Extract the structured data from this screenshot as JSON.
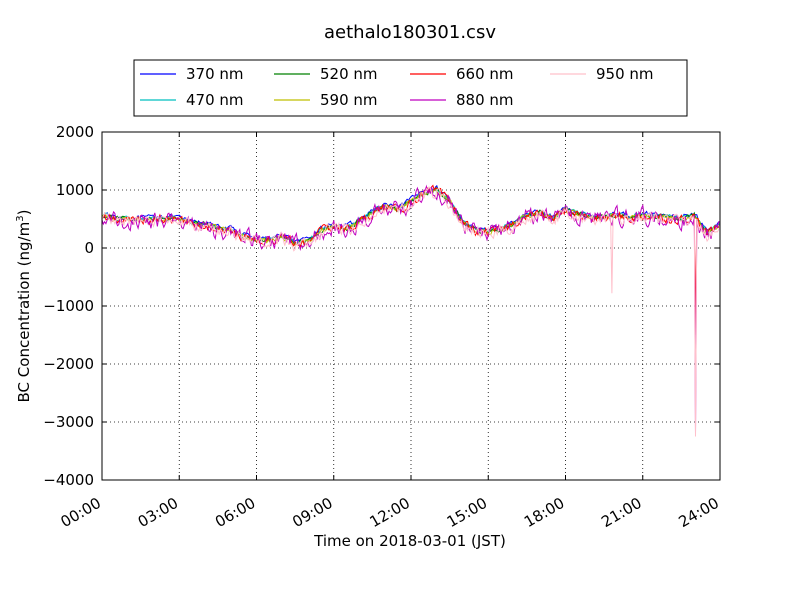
{
  "chart_data": {
    "type": "line",
    "title": "aethalo180301.csv",
    "xlabel": "Time on 2018-03-01 (JST)",
    "ylabel_main": "BC Concentration (ng/m",
    "ylabel_sup": "3",
    "ylabel_end": ")",
    "xlim": [
      0,
      24
    ],
    "ylim": [
      -4000,
      2000
    ],
    "x_ticks": [
      0,
      3,
      6,
      9,
      12,
      15,
      18,
      21,
      24
    ],
    "x_tick_labels": [
      "00:00",
      "03:00",
      "06:00",
      "09:00",
      "12:00",
      "15:00",
      "18:00",
      "21:00",
      "24:00"
    ],
    "y_ticks": [
      -4000,
      -3000,
      -2000,
      -1000,
      0,
      1000,
      2000
    ],
    "y_tick_labels": [
      "−4000",
      "−3000",
      "−2000",
      "−1000",
      "0",
      "1000",
      "2000"
    ],
    "grid": true,
    "legend_position": "top-center",
    "base_profile_hours": [
      0,
      0.5,
      1,
      1.5,
      2,
      2.5,
      3,
      3.5,
      4,
      4.5,
      5,
      5.5,
      6,
      6.5,
      7,
      7.5,
      8,
      8.5,
      9,
      9.5,
      10,
      10.5,
      11,
      11.5,
      12,
      12.5,
      13,
      13.5,
      14,
      14.5,
      15,
      15.5,
      16,
      16.5,
      17,
      17.5,
      18,
      18.5,
      19,
      19.5,
      20,
      20.5,
      21,
      21.5,
      22,
      22.5,
      23,
      23.5,
      24
    ],
    "base_profile_values": [
      550,
      500,
      480,
      470,
      500,
      520,
      480,
      420,
      400,
      330,
      300,
      200,
      150,
      130,
      180,
      80,
      100,
      300,
      380,
      330,
      460,
      600,
      720,
      650,
      800,
      950,
      1000,
      800,
      450,
      300,
      280,
      320,
      420,
      550,
      600,
      500,
      650,
      580,
      520,
      520,
      560,
      520,
      560,
      540,
      520,
      500,
      560,
      250,
      400
    ],
    "spike_points": [
      {
        "series": "950 nm",
        "x": 19.8,
        "y": -780
      },
      {
        "series": "950 nm",
        "x": 23.05,
        "y": -3250
      },
      {
        "series": "880 nm",
        "x": 23.05,
        "y": -3200
      },
      {
        "series": "660 nm",
        "x": 23.05,
        "y": -1500
      }
    ],
    "series": [
      {
        "name": "370 nm",
        "color": "#0000ff",
        "noise": 60,
        "offset": 40
      },
      {
        "name": "470 nm",
        "color": "#00bfbf",
        "noise": 60,
        "offset": 20
      },
      {
        "name": "520 nm",
        "color": "#008000",
        "noise": 70,
        "offset": 10
      },
      {
        "name": "590 nm",
        "color": "#bfbf00",
        "noise": 70,
        "offset": 0
      },
      {
        "name": "660 nm",
        "color": "#ff0000",
        "noise": 120,
        "offset": -10
      },
      {
        "name": "880 nm",
        "color": "#bf00bf",
        "noise": 230,
        "offset": -20
      },
      {
        "name": "950 nm",
        "color": "#ffc0cb",
        "noise": 160,
        "offset": -30
      }
    ]
  }
}
